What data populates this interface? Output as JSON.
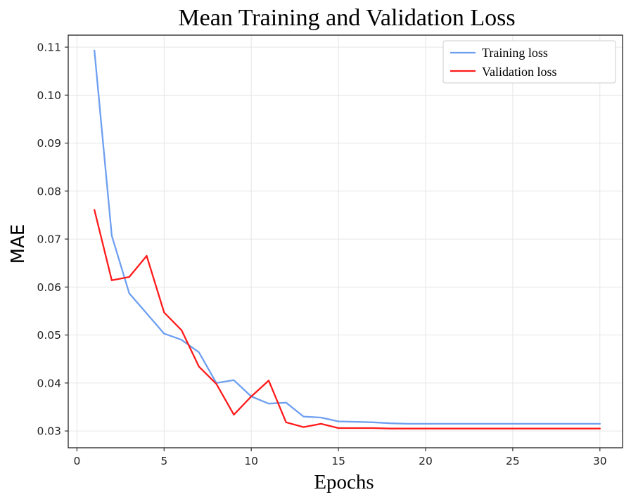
{
  "chart_data": {
    "type": "line",
    "title": "Mean Training and Validation Loss",
    "xlabel": "Epochs",
    "ylabel": "MAE",
    "xlim": [
      -0.5,
      31.3
    ],
    "ylim": [
      0.0265,
      0.1125
    ],
    "xticks": [
      0,
      5,
      10,
      15,
      20,
      25,
      30
    ],
    "xtick_labels": [
      "0",
      "5",
      "10",
      "15",
      "20",
      "25",
      "30"
    ],
    "yticks": [
      0.03,
      0.04,
      0.05,
      0.06,
      0.07,
      0.08,
      0.09,
      0.1,
      0.11
    ],
    "ytick_labels": [
      "0.03",
      "0.04",
      "0.05",
      "0.06",
      "0.07",
      "0.08",
      "0.09",
      "0.10",
      "0.11"
    ],
    "grid": true,
    "legend_position": "top-right",
    "x": [
      1,
      2,
      3,
      4,
      5,
      6,
      7,
      8,
      9,
      10,
      11,
      12,
      13,
      14,
      15,
      16,
      17,
      18,
      19,
      20,
      21,
      22,
      23,
      24,
      25,
      26,
      27,
      28,
      29,
      30
    ],
    "series": [
      {
        "name": "Training loss",
        "color": "#6e9ff0",
        "values": [
          0.1093,
          0.0707,
          0.0587,
          0.0545,
          0.0503,
          0.049,
          0.0464,
          0.04,
          0.0406,
          0.0372,
          0.0357,
          0.0359,
          0.033,
          0.0328,
          0.032,
          0.0319,
          0.0318,
          0.0316,
          0.0315,
          0.0315,
          0.0315,
          0.0315,
          0.0315,
          0.0315,
          0.0315,
          0.0315,
          0.0315,
          0.0315,
          0.0315,
          0.0315
        ]
      },
      {
        "name": "Validation loss",
        "color": "#ff1a1a",
        "values": [
          0.0761,
          0.0614,
          0.0621,
          0.0665,
          0.0547,
          0.051,
          0.0434,
          0.0398,
          0.0334,
          0.0372,
          0.0405,
          0.0318,
          0.0308,
          0.0315,
          0.0306,
          0.0306,
          0.0306,
          0.0305,
          0.0305,
          0.0305,
          0.0305,
          0.0305,
          0.0305,
          0.0305,
          0.0305,
          0.0305,
          0.0305,
          0.0305,
          0.0305,
          0.0305
        ]
      }
    ]
  }
}
